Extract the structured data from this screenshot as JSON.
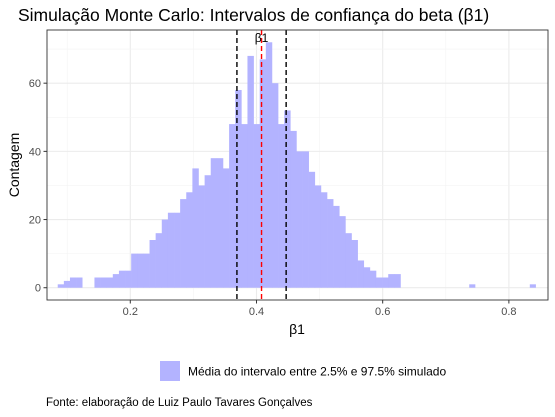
{
  "chart_data": {
    "type": "histogram",
    "title": "Simulação Monte Carlo: Intervalos de confiança do beta (β1)",
    "xlabel": "β1",
    "ylabel": "Contagem",
    "xlim": [
      0.068,
      0.862
    ],
    "ylim": [
      -3.6,
      75.6
    ],
    "x_ticks": [
      0.2,
      0.4,
      0.6,
      0.8
    ],
    "x_tick_labels": [
      "0.2",
      "0.4",
      "0.6",
      "0.8"
    ],
    "y_ticks": [
      0,
      20,
      40,
      60
    ],
    "y_tick_labels": [
      "0",
      "20",
      "40",
      "60"
    ],
    "grid": true,
    "bin_width": 0.0097,
    "bins_start": 0.085,
    "counts": [
      1,
      2,
      3,
      3,
      0,
      0,
      3,
      3,
      3,
      4,
      5,
      5,
      10,
      10,
      10,
      14,
      16,
      20,
      22,
      22,
      26,
      28,
      35,
      30,
      33,
      38,
      38,
      35,
      48,
      58,
      48,
      68,
      48,
      67,
      72,
      60,
      48,
      52,
      46,
      40,
      40,
      34,
      30,
      28,
      26,
      24,
      21,
      16,
      14,
      8,
      6,
      5,
      3,
      3,
      4,
      4,
      0,
      0,
      0,
      0,
      0,
      0,
      0,
      0,
      0,
      0,
      0,
      0,
      0,
      0,
      0,
      0,
      0,
      0,
      0,
      0,
      0,
      0,
      0,
      0,
      0,
      0,
      0,
      0,
      0,
      0,
      0,
      0,
      0,
      0,
      0,
      0,
      0,
      0,
      0,
      0,
      0
    ],
    "sparse_bars": [
      {
        "x": 0.742,
        "count": 1
      },
      {
        "x": 0.838,
        "count": 1
      }
    ],
    "fill_color": "#b3b3ff",
    "reference_lines": [
      {
        "x": 0.369,
        "color": "#000000",
        "style": "dashed"
      },
      {
        "x": 0.447,
        "color": "#000000",
        "style": "dashed"
      },
      {
        "x": 0.408,
        "color": "#ff0000",
        "style": "dashed",
        "label": "β1"
      }
    ],
    "legend": {
      "position": "bottom",
      "entries": [
        {
          "label": "Média do intervalo entre 2.5% e 97.5% simulado",
          "color": "#b3b3ff"
        }
      ]
    }
  },
  "caption": "Fonte: elaboração de Luiz Paulo Tavares Gonçalves"
}
